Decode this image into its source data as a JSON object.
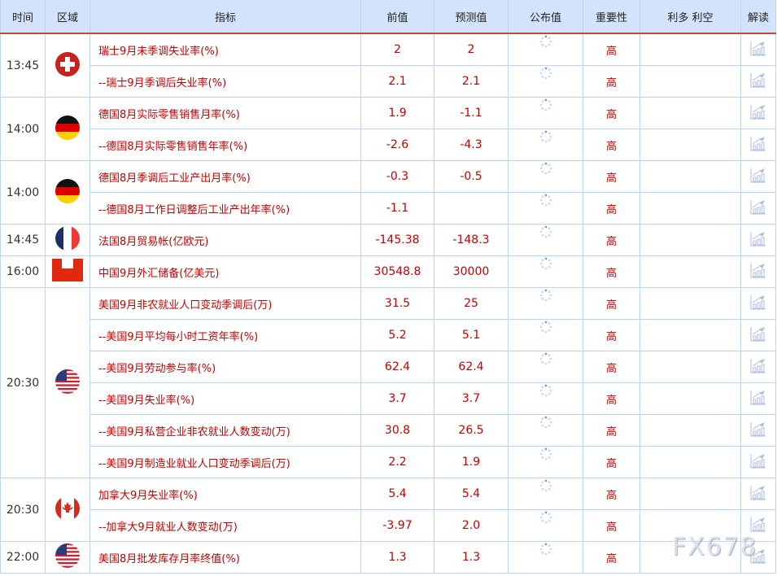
{
  "header": {
    "time": "时间",
    "region": "区域",
    "indicator": "指标",
    "previous": "前值",
    "forecast": "预测值",
    "actual": "公布值",
    "importance": "重要性",
    "impact": "利多 利空",
    "analysis": "解读"
  },
  "groups": [
    {
      "time": "13:45",
      "flag": "switzerland",
      "rows": [
        {
          "indicator": "瑞士9月未季调失业率(%)",
          "previous": "2",
          "forecast": "2",
          "importance": "高"
        },
        {
          "indicator": "--瑞士9月季调后失业率(%)",
          "previous": "2.1",
          "forecast": "2.1",
          "importance": "高"
        }
      ]
    },
    {
      "time": "14:00",
      "flag": "germany",
      "rows": [
        {
          "indicator": "德国8月实际零售销售月率(%)",
          "previous": "1.9",
          "forecast": "-1.1",
          "importance": "高"
        },
        {
          "indicator": "--德国8月实际零售销售年率(%)",
          "previous": "-2.6",
          "forecast": "-4.3",
          "importance": "高"
        }
      ]
    },
    {
      "time": "14:00",
      "flag": "germany",
      "rows": [
        {
          "indicator": "德国8月季调后工业产出月率(%)",
          "previous": "-0.3",
          "forecast": "-0.5",
          "importance": "高"
        },
        {
          "indicator": "--德国8月工作日调整后工业产出年率(%)",
          "previous": "-1.1",
          "forecast": "",
          "importance": "高"
        }
      ]
    },
    {
      "time": "14:45",
      "flag": "france",
      "rows": [
        {
          "indicator": "法国8月贸易帐(亿欧元)",
          "previous": "-145.38",
          "forecast": "-148.3",
          "importance": "高"
        }
      ]
    },
    {
      "time": "16:00",
      "flag": "china",
      "rows": [
        {
          "indicator": "中国9月外汇储备(亿美元)",
          "previous": "30548.8",
          "forecast": "30000",
          "importance": "高"
        }
      ]
    },
    {
      "time": "20:30",
      "flag": "usa",
      "rows": [
        {
          "indicator": "美国9月非农就业人口变动季调后(万)",
          "previous": "31.5",
          "forecast": "25",
          "importance": "高"
        },
        {
          "indicator": "--美国9月平均每小时工资年率(%)",
          "previous": "5.2",
          "forecast": "5.1",
          "importance": "高"
        },
        {
          "indicator": "--美国9月劳动参与率(%)",
          "previous": "62.4",
          "forecast": "62.4",
          "importance": "高"
        },
        {
          "indicator": "--美国9月失业率(%)",
          "previous": "3.7",
          "forecast": "3.7",
          "importance": "高"
        },
        {
          "indicator": "--美国9月私营企业非农就业人数变动(万)",
          "previous": "30.8",
          "forecast": "26.5",
          "importance": "高"
        },
        {
          "indicator": "--美国9月制造业就业人口变动季调后(万)",
          "previous": "2.2",
          "forecast": "1.9",
          "importance": "高"
        }
      ]
    },
    {
      "time": "20:30",
      "flag": "canada",
      "rows": [
        {
          "indicator": "加拿大9月失业率(%)",
          "previous": "5.4",
          "forecast": "5.4",
          "importance": "高"
        },
        {
          "indicator": "--加拿大9月就业人数变动(万)",
          "previous": "-3.97",
          "forecast": "2.0",
          "importance": "高"
        }
      ]
    },
    {
      "time": "22:00",
      "flag": "usa",
      "rows": [
        {
          "indicator": "美国8月批发库存月率终值(%)",
          "previous": "1.3",
          "forecast": "1.3",
          "importance": "高"
        }
      ]
    }
  ],
  "watermark": "FX678",
  "colors": {
    "accent": "#c40000",
    "header_bg": "#d3e3fb",
    "header_border": "#c9473c"
  }
}
